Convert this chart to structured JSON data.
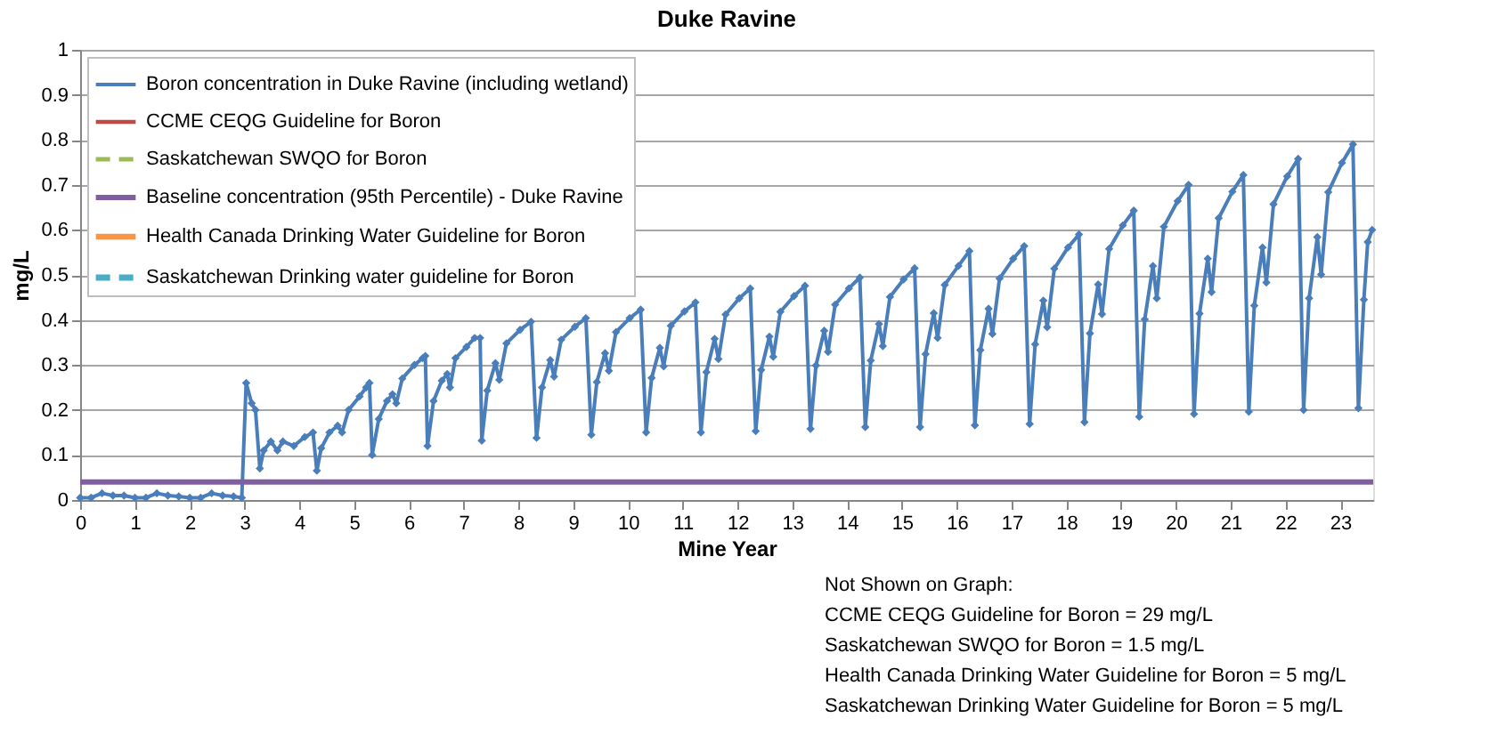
{
  "chart_data": {
    "type": "line",
    "title": "Duke Ravine",
    "xlabel": "Mine Year",
    "ylabel": "mg/L",
    "xlim": [
      0,
      23.6
    ],
    "xticks": [
      0,
      1,
      2,
      3,
      4,
      5,
      6,
      7,
      8,
      9,
      10,
      11,
      12,
      13,
      14,
      15,
      16,
      17,
      18,
      19,
      20,
      21,
      22,
      23
    ],
    "ylim": [
      0,
      1
    ],
    "yticks": [
      0,
      0.1,
      0.2,
      0.3,
      0.4,
      0.5,
      0.6,
      0.7,
      0.8,
      0.9,
      1
    ],
    "grid": "y",
    "legend": "top left",
    "annotations": [
      "Not Shown on Graph:",
      "CCME CEQG Guideline for Boron = 29 mg/L",
      "Saskatchewan SWQO for Boron = 1.5 mg/L",
      "Health Canada Drinking Water Guideline for Boron = 5 mg/L",
      "Saskatchewan Drinking Water Guideline for Boron = 5 mg/L"
    ],
    "series": [
      {
        "name": "Boron concentration in Duke Ravine (including wetland)",
        "color": "#4a7ebb",
        "marker": "diamond",
        "line_style": "solid",
        "x": [
          0,
          0.2,
          0.4,
          0.6,
          0.8,
          1.0,
          1.2,
          1.4,
          1.6,
          1.8,
          2.0,
          2.2,
          2.4,
          2.6,
          2.8,
          2.95,
          3.03,
          3.13,
          3.2,
          3.28,
          3.35,
          3.48,
          3.6,
          3.7,
          3.9,
          4.1,
          4.25,
          4.32,
          4.4,
          4.55,
          4.7,
          4.78,
          4.9,
          5.1,
          5.22,
          5.28,
          5.33,
          5.45,
          5.6,
          5.7,
          5.77,
          5.88,
          6.1,
          6.25,
          6.3,
          6.34,
          6.45,
          6.6,
          6.7,
          6.75,
          6.85,
          7.05,
          7.2,
          7.3,
          7.33,
          7.43,
          7.58,
          7.65,
          7.78,
          8.03,
          8.23,
          8.33,
          8.43,
          8.58,
          8.65,
          8.78,
          9.03,
          9.23,
          9.33,
          9.43,
          9.58,
          9.65,
          9.78,
          10.03,
          10.23,
          10.33,
          10.43,
          10.58,
          10.65,
          10.78,
          11.03,
          11.23,
          11.33,
          11.43,
          11.58,
          11.65,
          11.78,
          12.03,
          12.23,
          12.33,
          12.43,
          12.58,
          12.65,
          12.78,
          13.03,
          13.23,
          13.33,
          13.43,
          13.58,
          13.65,
          13.78,
          14.03,
          14.23,
          14.33,
          14.43,
          14.58,
          14.65,
          14.78,
          15.03,
          15.23,
          15.33,
          15.43,
          15.58,
          15.65,
          15.78,
          16.03,
          16.23,
          16.33,
          16.43,
          16.58,
          16.65,
          16.78,
          17.03,
          17.23,
          17.33,
          17.43,
          17.58,
          17.65,
          17.78,
          18.03,
          18.23,
          18.33,
          18.43,
          18.58,
          18.65,
          18.78,
          19.03,
          19.23,
          19.33,
          19.43,
          19.58,
          19.65,
          19.78,
          20.03,
          20.23,
          20.33,
          20.43,
          20.58,
          20.65,
          20.78,
          21.03,
          21.23,
          21.33,
          21.43,
          21.58,
          21.65,
          21.78,
          22.03,
          22.23,
          22.33,
          22.43,
          22.58,
          22.65,
          22.78,
          23.03,
          23.23,
          23.33,
          23.43,
          23.5,
          23.58
        ],
        "values": [
          0.005,
          0.005,
          0.015,
          0.01,
          0.01,
          0.005,
          0.005,
          0.015,
          0.01,
          0.008,
          0.005,
          0.005,
          0.015,
          0.01,
          0.008,
          0.005,
          0.26,
          0.215,
          0.2,
          0.07,
          0.11,
          0.13,
          0.11,
          0.13,
          0.12,
          0.14,
          0.15,
          0.065,
          0.115,
          0.15,
          0.165,
          0.15,
          0.2,
          0.23,
          0.25,
          0.26,
          0.1,
          0.18,
          0.22,
          0.235,
          0.215,
          0.27,
          0.3,
          0.315,
          0.32,
          0.12,
          0.22,
          0.265,
          0.28,
          0.25,
          0.315,
          0.34,
          0.36,
          0.36,
          0.132,
          0.243,
          0.304,
          0.267,
          0.348,
          0.378,
          0.396,
          0.138,
          0.25,
          0.311,
          0.274,
          0.356,
          0.385,
          0.404,
          0.145,
          0.262,
          0.326,
          0.287,
          0.373,
          0.404,
          0.423,
          0.15,
          0.271,
          0.338,
          0.297,
          0.387,
          0.419,
          0.439,
          0.15,
          0.284,
          0.358,
          0.313,
          0.412,
          0.448,
          0.47,
          0.153,
          0.289,
          0.363,
          0.318,
          0.418,
          0.453,
          0.476,
          0.158,
          0.299,
          0.376,
          0.329,
          0.434,
          0.47,
          0.494,
          0.162,
          0.31,
          0.391,
          0.342,
          0.451,
          0.49,
          0.515,
          0.162,
          0.324,
          0.415,
          0.36,
          0.478,
          0.52,
          0.553,
          0.166,
          0.333,
          0.425,
          0.369,
          0.492,
          0.536,
          0.564,
          0.169,
          0.346,
          0.443,
          0.384,
          0.514,
          0.561,
          0.59,
          0.173,
          0.37,
          0.479,
          0.413,
          0.558,
          0.61,
          0.643,
          0.185,
          0.401,
          0.52,
          0.448,
          0.607,
          0.664,
          0.7,
          0.191,
          0.414,
          0.536,
          0.462,
          0.626,
          0.685,
          0.722,
          0.196,
          0.432,
          0.561,
          0.483,
          0.657,
          0.719,
          0.758,
          0.2,
          0.448,
          0.584,
          0.501,
          0.684,
          0.749,
          0.79,
          0.204,
          0.445,
          0.573,
          0.6
        ]
      },
      {
        "name": "CCME CEQG Guideline for Boron",
        "color": "#be4b48",
        "line_style": "solid"
      },
      {
        "name": "Saskatchewan SWQO for Boron",
        "color": "#9bbb59",
        "line_style": "dashed"
      },
      {
        "name": "Baseline concentration (95th Percentile) - Duke Ravine",
        "color": "#7f5fa0",
        "line_style": "solid",
        "x": [
          0,
          23.6
        ],
        "values": [
          0.04,
          0.04
        ]
      },
      {
        "name": "Health Canada Drinking Water Guideline for Boron",
        "color": "#f79646",
        "line_style": "solid"
      },
      {
        "name": "Saskatchewan  Drinking water guideline  for Boron",
        "color": "#4bacc6",
        "line_style": "dashed"
      }
    ]
  }
}
